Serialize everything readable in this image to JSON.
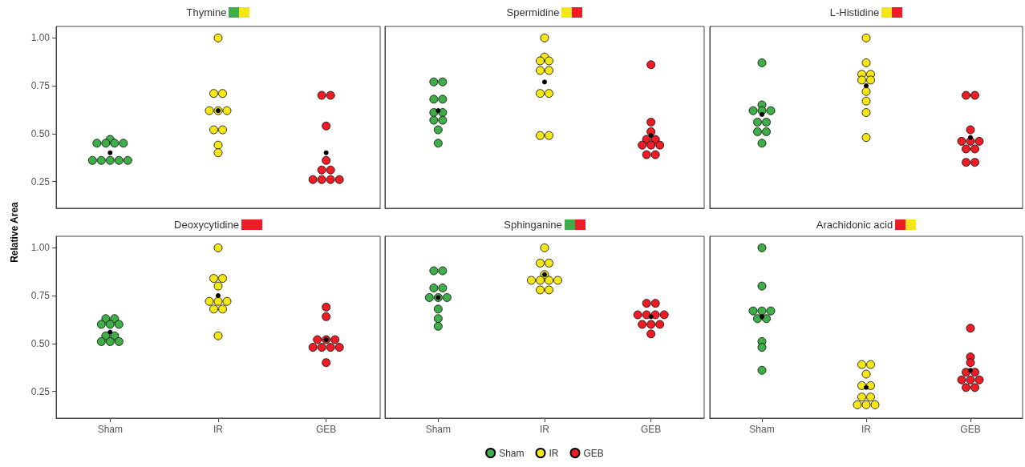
{
  "chart_data": [
    {
      "type": "scatter",
      "title": "Thymine",
      "categories": [
        "Sham",
        "IR",
        "GEB"
      ],
      "ylim": [
        0.11,
        1.06
      ],
      "yticks": [
        {
          "value": 0.25,
          "label": "0.25"
        },
        {
          "value": 0.5,
          "label": "0.50"
        },
        {
          "value": 0.75,
          "label": "0.75"
        },
        {
          "value": 1,
          "label": "1.00"
        }
      ],
      "tick_labels": "y",
      "grid": false,
      "marker": "circle",
      "series": [
        {
          "color": "#3fae49",
          "x": [
            "Sham",
            "Sham",
            "Sham",
            "Sham",
            "Sham",
            "Sham",
            "Sham",
            "Sham",
            "Sham",
            "Sham"
          ],
          "values": [
            0.47,
            0.45,
            0.45,
            0.45,
            0.45,
            0.36,
            0.36,
            0.36,
            0.36,
            0.36
          ]
        },
        {
          "color": "#f5e61a",
          "x": [
            "IR",
            "IR",
            "IR",
            "IR",
            "IR",
            "IR",
            "IR",
            "IR",
            "IR",
            "IR"
          ],
          "values": [
            1.0,
            0.71,
            0.71,
            0.62,
            0.62,
            0.62,
            0.52,
            0.52,
            0.44,
            0.4
          ]
        },
        {
          "color": "#ee1c25",
          "x": [
            "GEB",
            "GEB",
            "GEB",
            "GEB",
            "GEB",
            "GEB",
            "GEB",
            "GEB",
            "GEB",
            "GEB"
          ],
          "values": [
            0.7,
            0.7,
            0.54,
            0.36,
            0.31,
            0.31,
            0.26,
            0.26,
            0.26,
            0.26
          ]
        },
        {
          "color": "#000000",
          "x": [
            "Sham",
            "IR",
            "GEB"
          ],
          "values": [
            0.4,
            0.62,
            0.4
          ]
        }
      ]
    },
    {
      "type": "scatter",
      "title": "Spermidine",
      "categories": [
        "Sham",
        "IR",
        "GEB"
      ],
      "ylim": [
        0.11,
        1.06
      ],
      "tick_labels": false,
      "grid": false,
      "marker": "circle",
      "series": [
        {
          "color": "#3fae49",
          "x": [
            "Sham",
            "Sham",
            "Sham",
            "Sham",
            "Sham",
            "Sham",
            "Sham",
            "Sham",
            "Sham",
            "Sham"
          ],
          "values": [
            0.77,
            0.77,
            0.68,
            0.68,
            0.61,
            0.61,
            0.57,
            0.57,
            0.52,
            0.45
          ]
        },
        {
          "color": "#f5e61a",
          "x": [
            "IR",
            "IR",
            "IR",
            "IR",
            "IR",
            "IR",
            "IR",
            "IR",
            "IR",
            "IR"
          ],
          "values": [
            1.0,
            0.9,
            0.88,
            0.88,
            0.83,
            0.83,
            0.71,
            0.71,
            0.49,
            0.49
          ]
        },
        {
          "color": "#ee1c25",
          "x": [
            "GEB",
            "GEB",
            "GEB",
            "GEB",
            "GEB",
            "GEB",
            "GEB",
            "GEB",
            "GEB",
            "GEB"
          ],
          "values": [
            0.86,
            0.56,
            0.51,
            0.47,
            0.47,
            0.44,
            0.44,
            0.44,
            0.39,
            0.39
          ]
        },
        {
          "color": "#000000",
          "x": [
            "Sham",
            "IR",
            "GEB"
          ],
          "values": [
            0.62,
            0.77,
            0.49
          ]
        }
      ]
    },
    {
      "type": "scatter",
      "title": "L-Histidine",
      "categories": [
        "Sham",
        "IR",
        "GEB"
      ],
      "ylim": [
        0.11,
        1.06
      ],
      "tick_labels": false,
      "grid": false,
      "marker": "circle",
      "series": [
        {
          "color": "#3fae49",
          "x": [
            "Sham",
            "Sham",
            "Sham",
            "Sham",
            "Sham",
            "Sham",
            "Sham",
            "Sham",
            "Sham",
            "Sham"
          ],
          "values": [
            0.87,
            0.65,
            0.62,
            0.62,
            0.62,
            0.56,
            0.56,
            0.51,
            0.51,
            0.45
          ]
        },
        {
          "color": "#f5e61a",
          "x": [
            "IR",
            "IR",
            "IR",
            "IR",
            "IR",
            "IR",
            "IR",
            "IR",
            "IR",
            "IR"
          ],
          "values": [
            1.0,
            0.87,
            0.81,
            0.81,
            0.78,
            0.78,
            0.72,
            0.67,
            0.61,
            0.48
          ]
        },
        {
          "color": "#ee1c25",
          "x": [
            "GEB",
            "GEB",
            "GEB",
            "GEB",
            "GEB",
            "GEB",
            "GEB",
            "GEB",
            "GEB",
            "GEB"
          ],
          "values": [
            0.7,
            0.7,
            0.52,
            0.46,
            0.46,
            0.46,
            0.42,
            0.42,
            0.35,
            0.35
          ]
        },
        {
          "color": "#000000",
          "x": [
            "Sham",
            "IR",
            "GEB"
          ],
          "values": [
            0.6,
            0.75,
            0.48
          ]
        }
      ]
    },
    {
      "type": "scatter",
      "title": "Deoxycytidine",
      "ylabel": "Relative Area",
      "categories": [
        "Sham",
        "IR",
        "GEB"
      ],
      "ylim": [
        0.11,
        1.06
      ],
      "yticks": [
        {
          "value": 0.25,
          "label": "0.25"
        },
        {
          "value": 0.5,
          "label": "0.50"
        },
        {
          "value": 0.75,
          "label": "0.75"
        },
        {
          "value": 1,
          "label": "1.00"
        }
      ],
      "grid": false,
      "marker": "circle",
      "series": [
        {
          "color": "#3fae49",
          "x": [
            "Sham",
            "Sham",
            "Sham",
            "Sham",
            "Sham",
            "Sham",
            "Sham",
            "Sham",
            "Sham",
            "Sham"
          ],
          "values": [
            0.63,
            0.63,
            0.6,
            0.6,
            0.6,
            0.54,
            0.54,
            0.51,
            0.51,
            0.51
          ]
        },
        {
          "color": "#f5e61a",
          "x": [
            "IR",
            "IR",
            "IR",
            "IR",
            "IR",
            "IR",
            "IR",
            "IR",
            "IR",
            "IR"
          ],
          "values": [
            1.0,
            0.84,
            0.84,
            0.8,
            0.72,
            0.72,
            0.72,
            0.68,
            0.68,
            0.54
          ]
        },
        {
          "color": "#ee1c25",
          "x": [
            "GEB",
            "GEB",
            "GEB",
            "GEB",
            "GEB",
            "GEB",
            "GEB",
            "GEB",
            "GEB",
            "GEB"
          ],
          "values": [
            0.69,
            0.64,
            0.52,
            0.52,
            0.52,
            0.48,
            0.48,
            0.48,
            0.48,
            0.4
          ]
        },
        {
          "color": "#000000",
          "x": [
            "Sham",
            "IR",
            "GEB"
          ],
          "values": [
            0.56,
            0.75,
            0.52
          ]
        }
      ]
    },
    {
      "type": "scatter",
      "title": "Sphinganine",
      "categories": [
        "Sham",
        "IR",
        "GEB"
      ],
      "ylim": [
        0.11,
        1.06
      ],
      "tick_labels": "x",
      "grid": false,
      "marker": "circle",
      "legend": "bottom",
      "series": [
        {
          "name": "Sham",
          "color": "#3fae49",
          "x": [
            "Sham",
            "Sham",
            "Sham",
            "Sham",
            "Sham",
            "Sham",
            "Sham",
            "Sham",
            "Sham",
            "Sham"
          ],
          "values": [
            0.88,
            0.88,
            0.79,
            0.79,
            0.74,
            0.74,
            0.74,
            0.68,
            0.63,
            0.59
          ]
        },
        {
          "name": "IR",
          "color": "#f5e61a",
          "x": [
            "IR",
            "IR",
            "IR",
            "IR",
            "IR",
            "IR",
            "IR",
            "IR",
            "IR",
            "IR"
          ],
          "values": [
            1.0,
            0.92,
            0.92,
            0.86,
            0.83,
            0.83,
            0.83,
            0.83,
            0.78,
            0.78
          ]
        },
        {
          "name": "GEB",
          "color": "#ee1c25",
          "x": [
            "GEB",
            "GEB",
            "GEB",
            "GEB",
            "GEB",
            "GEB",
            "GEB",
            "GEB",
            "GEB",
            "GEB"
          ],
          "values": [
            0.71,
            0.71,
            0.65,
            0.65,
            0.65,
            0.65,
            0.6,
            0.6,
            0.6,
            0.55
          ]
        },
        {
          "color": "#000000",
          "x": [
            "Sham",
            "IR",
            "GEB"
          ],
          "values": [
            0.74,
            0.86,
            0.64
          ]
        }
      ]
    },
    {
      "type": "scatter",
      "title": "Arachidonic acid",
      "categories": [
        "Sham",
        "IR",
        "GEB"
      ],
      "ylim": [
        0.11,
        1.06
      ],
      "tick_labels": "x",
      "grid": false,
      "marker": "circle",
      "series": [
        {
          "color": "#3fae49",
          "x": [
            "Sham",
            "Sham",
            "Sham",
            "Sham",
            "Sham",
            "Sham",
            "Sham",
            "Sham",
            "Sham",
            "Sham"
          ],
          "values": [
            1.0,
            0.8,
            0.67,
            0.67,
            0.67,
            0.63,
            0.63,
            0.51,
            0.48,
            0.36
          ]
        },
        {
          "color": "#f5e61a",
          "x": [
            "IR",
            "IR",
            "IR",
            "IR",
            "IR",
            "IR",
            "IR",
            "IR",
            "IR",
            "IR"
          ],
          "values": [
            0.39,
            0.39,
            0.34,
            0.28,
            0.28,
            0.22,
            0.22,
            0.18,
            0.18,
            0.18
          ]
        },
        {
          "color": "#ee1c25",
          "x": [
            "GEB",
            "GEB",
            "GEB",
            "GEB",
            "GEB",
            "GEB",
            "GEB",
            "GEB",
            "GEB",
            "GEB"
          ],
          "values": [
            0.58,
            0.43,
            0.4,
            0.35,
            0.35,
            0.31,
            0.31,
            0.31,
            0.27,
            0.27
          ]
        },
        {
          "color": "#000000",
          "x": [
            "Sham",
            "IR",
            "GEB"
          ],
          "values": [
            0.64,
            0.27,
            0.36
          ]
        }
      ]
    }
  ]
}
